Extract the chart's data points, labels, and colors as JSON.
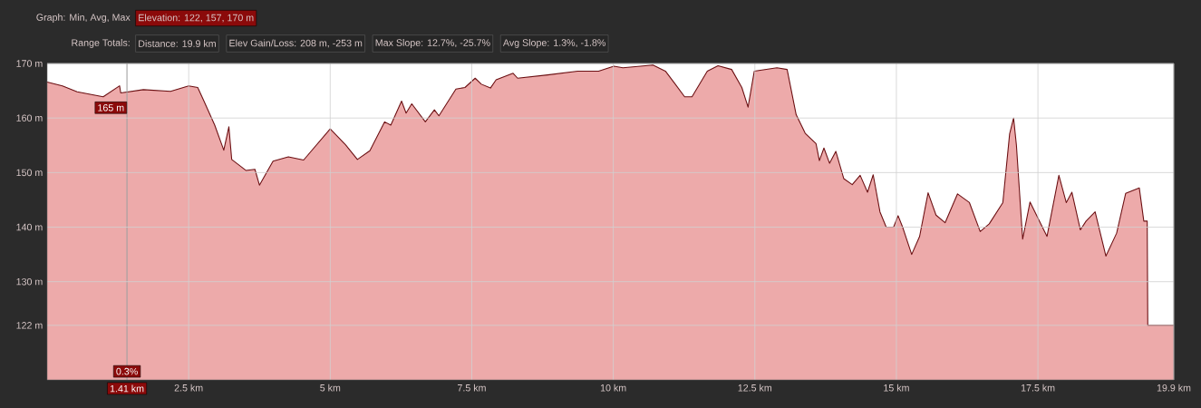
{
  "chart_data": {
    "type": "area",
    "x": [
      0,
      0.27,
      0.53,
      0.99,
      1.28,
      1.3,
      1.7,
      2.18,
      2.5,
      2.66,
      2.77,
      2.96,
      3.12,
      3.21,
      3.26,
      3.51,
      3.67,
      3.75,
      3.99,
      4.26,
      4.53,
      5.0,
      5.27,
      5.48,
      5.7,
      5.96,
      6.07,
      6.26,
      6.34,
      6.44,
      6.68,
      6.84,
      6.92,
      7.22,
      7.38,
      7.56,
      7.67,
      7.83,
      7.93,
      8.23,
      8.31,
      8.84,
      9.37,
      9.74,
      10.01,
      10.17,
      10.7,
      10.92,
      11.08,
      11.26,
      11.39,
      11.66,
      11.85,
      12.09,
      12.27,
      12.38,
      12.49,
      12.89,
      13.07,
      13.23,
      13.39,
      13.58,
      13.64,
      13.72,
      13.82,
      13.93,
      14.07,
      14.22,
      14.36,
      14.49,
      14.59,
      14.71,
      14.82,
      14.95,
      15.03,
      15.11,
      15.27,
      15.41,
      15.56,
      15.7,
      15.86,
      16.08,
      16.29,
      16.48,
      16.64,
      16.88,
      17.0,
      17.07,
      17.12,
      17.23,
      17.36,
      17.66,
      17.87,
      18.0,
      18.1,
      18.25,
      18.35,
      18.51,
      18.7,
      18.89,
      19.05,
      19.29,
      19.37,
      19.43,
      19.44,
      19.9
    ],
    "series": [
      {
        "color": "#6b0f12",
        "values": [
          166.6,
          165.9,
          164.8,
          163.9,
          165.9,
          164.6,
          165.2,
          164.9,
          165.9,
          165.6,
          163.1,
          158.7,
          154.1,
          158.4,
          152.4,
          150.4,
          150.6,
          147.7,
          152.1,
          152.9,
          152.3,
          158.0,
          155.1,
          152.4,
          154.0,
          159.3,
          158.7,
          163.1,
          160.9,
          162.6,
          159.3,
          161.5,
          160.4,
          165.3,
          165.6,
          167.3,
          166.2,
          165.5,
          167.0,
          168.2,
          167.3,
          167.9,
          168.6,
          168.6,
          169.5,
          169.2,
          169.7,
          168.6,
          166.4,
          163.9,
          163.9,
          168.6,
          169.6,
          168.9,
          165.6,
          162.0,
          168.6,
          169.2,
          168.9,
          160.6,
          157.2,
          155.3,
          152.2,
          154.5,
          151.7,
          153.9,
          148.9,
          147.8,
          149.5,
          146.4,
          149.6,
          142.8,
          140.0,
          140.0,
          142.1,
          140.0,
          135.0,
          138.3,
          146.3,
          142.2,
          140.8,
          146.1,
          144.5,
          139.2,
          140.6,
          144.5,
          157.1,
          160.0,
          155.0,
          137.8,
          144.6,
          138.3,
          149.5,
          144.5,
          146.4,
          139.5,
          141.1,
          142.8,
          134.7,
          138.9,
          146.2,
          147.2,
          141.1,
          141.1,
          122,
          122
        ]
      }
    ],
    "xlim": [
      0,
      19.9
    ],
    "ylim": [
      112,
      170
    ],
    "xticks": [
      {
        "value": 2.5,
        "label": "2.5 km"
      },
      {
        "value": 5,
        "label": "5 km"
      },
      {
        "value": 7.5,
        "label": "7.5 km"
      },
      {
        "value": 10,
        "label": "10 km"
      },
      {
        "value": 12.5,
        "label": "12.5 km"
      },
      {
        "value": 15,
        "label": "15 km"
      },
      {
        "value": 17.5,
        "label": "17.5 km"
      },
      {
        "value": 19.9,
        "label": "19.9 km"
      }
    ],
    "yticks": [
      {
        "value": 122,
        "label": "122 m"
      },
      {
        "value": 130,
        "label": "130 m"
      },
      {
        "value": 140,
        "label": "140 m"
      },
      {
        "value": 150,
        "label": "150 m"
      },
      {
        "value": 160,
        "label": "160 m"
      },
      {
        "value": 170,
        "label": "170 m"
      }
    ],
    "grid": true,
    "ref_lines": [
      {
        "axis": "x",
        "value": 1.41,
        "label": "1.41 km",
        "color": "#a0a0a0"
      }
    ],
    "annotations": [
      "Graph: Min, Avg, Max",
      "Elevation: 122, 157, 170 m",
      "Range Totals:",
      "Distance: 19.9 km",
      "Elev Gain/Loss: 208 m, -253 m",
      "Max Slope: 12.7%, -25.7%",
      "Avg Slope: 1.3%, -1.8%",
      "0.3%",
      {
        "text": "165 m",
        "x": 1.41,
        "y": 165
      }
    ]
  }
}
